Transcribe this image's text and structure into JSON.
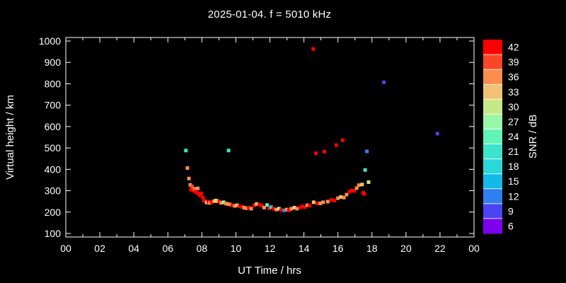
{
  "title": "2025-01-04. f = 5010 kHz",
  "colors": {
    "background": "#000000",
    "foreground": "#ffffff"
  },
  "chart_data": {
    "type": "scatter",
    "title": "2025-01-04. f = 5010 kHz",
    "xlabel": "UT Time / hrs",
    "ylabel": "Virtual height / km",
    "xlim": [
      0,
      24
    ],
    "ylim": [
      100,
      1000
    ],
    "grid": false,
    "x_tick_hours": [
      0,
      2,
      4,
      6,
      8,
      10,
      12,
      14,
      16,
      18,
      20,
      22,
      24
    ],
    "x_tick_labels": [
      "00",
      "02",
      "04",
      "06",
      "08",
      "10",
      "12",
      "14",
      "16",
      "18",
      "20",
      "22",
      "00"
    ],
    "y_ticks": [
      100,
      200,
      300,
      400,
      500,
      600,
      700,
      800,
      900,
      1000
    ],
    "colorbar": {
      "label": "SNR / dB",
      "ticks": [
        6,
        9,
        12,
        15,
        18,
        21,
        24,
        27,
        30,
        33,
        36,
        39,
        42
      ],
      "colors": [
        "#7C00F0",
        "#4A44F4",
        "#2E7FF2",
        "#13B9E9",
        "#2BD7DA",
        "#3BE4CB",
        "#62F3B6",
        "#9AF7A5",
        "#C7E886",
        "#F2C173",
        "#FB8D4D",
        "#FC4628",
        "#FF0000"
      ]
    },
    "point_desc": "each point = [UT hour, virtual height km, SNR dB]",
    "points": [
      [
        7.06,
        488,
        21
      ],
      [
        7.15,
        406,
        36
      ],
      [
        7.24,
        357,
        36
      ],
      [
        7.32,
        327,
        36
      ],
      [
        7.36,
        305,
        42
      ],
      [
        7.42,
        320,
        39
      ],
      [
        7.49,
        300,
        42
      ],
      [
        7.57,
        309,
        36
      ],
      [
        7.63,
        296,
        42
      ],
      [
        7.7,
        291,
        42
      ],
      [
        7.76,
        311,
        36
      ],
      [
        7.83,
        286,
        42
      ],
      [
        7.9,
        278,
        42
      ],
      [
        7.96,
        288,
        42
      ],
      [
        8.06,
        268,
        42
      ],
      [
        8.12,
        254,
        42
      ],
      [
        8.2,
        250,
        42
      ],
      [
        8.29,
        245,
        30
      ],
      [
        8.38,
        248,
        42
      ],
      [
        8.47,
        243,
        36
      ],
      [
        8.58,
        247,
        42
      ],
      [
        8.72,
        251,
        36
      ],
      [
        8.82,
        254,
        30
      ],
      [
        8.91,
        251,
        33
      ],
      [
        9.03,
        249,
        42
      ],
      [
        9.14,
        243,
        36
      ],
      [
        9.28,
        246,
        27
      ],
      [
        9.41,
        240,
        36
      ],
      [
        9.51,
        238,
        36
      ],
      [
        9.57,
        488,
        21
      ],
      [
        9.65,
        236,
        36
      ],
      [
        9.79,
        232,
        42
      ],
      [
        9.93,
        229,
        36
      ],
      [
        10.07,
        232,
        33
      ],
      [
        10.21,
        227,
        42
      ],
      [
        10.35,
        225,
        42
      ],
      [
        10.48,
        221,
        36
      ],
      [
        10.62,
        218,
        36
      ],
      [
        10.76,
        221,
        42
      ],
      [
        10.9,
        216,
        36
      ],
      [
        11.08,
        232,
        42
      ],
      [
        11.22,
        238,
        33
      ],
      [
        11.38,
        235,
        42
      ],
      [
        11.52,
        230,
        42
      ],
      [
        11.66,
        221,
        36
      ],
      [
        11.83,
        233,
        24
      ],
      [
        11.95,
        218,
        42
      ],
      [
        12.07,
        223,
        18
      ],
      [
        12.21,
        216,
        42
      ],
      [
        12.38,
        212,
        36
      ],
      [
        12.53,
        216,
        30
      ],
      [
        12.66,
        210,
        42
      ],
      [
        12.84,
        208,
        12
      ],
      [
        12.98,
        212,
        36
      ],
      [
        13.12,
        208,
        42
      ],
      [
        13.26,
        216,
        36
      ],
      [
        13.44,
        221,
        33
      ],
      [
        13.6,
        216,
        36
      ],
      [
        13.77,
        221,
        42
      ],
      [
        13.9,
        227,
        42
      ],
      [
        14.04,
        223,
        42
      ],
      [
        14.2,
        232,
        36
      ],
      [
        14.34,
        230,
        42
      ],
      [
        14.55,
        963,
        42
      ],
      [
        14.57,
        246,
        33
      ],
      [
        14.7,
        475,
        42
      ],
      [
        14.78,
        241,
        42
      ],
      [
        14.96,
        241,
        36
      ],
      [
        15.13,
        246,
        36
      ],
      [
        15.2,
        483,
        42
      ],
      [
        15.4,
        249,
        36
      ],
      [
        15.61,
        257,
        42
      ],
      [
        15.79,
        254,
        42
      ],
      [
        15.9,
        513,
        42
      ],
      [
        16.0,
        265,
        36
      ],
      [
        16.17,
        271,
        33
      ],
      [
        16.28,
        536,
        42
      ],
      [
        16.35,
        268,
        36
      ],
      [
        16.51,
        282,
        36
      ],
      [
        16.68,
        296,
        42
      ],
      [
        16.83,
        301,
        42
      ],
      [
        16.96,
        299,
        42
      ],
      [
        17.1,
        312,
        36
      ],
      [
        17.23,
        326,
        36
      ],
      [
        17.42,
        329,
        33
      ],
      [
        17.48,
        290,
        42
      ],
      [
        17.55,
        285,
        42
      ],
      [
        17.6,
        397,
        21
      ],
      [
        17.7,
        484,
        12
      ],
      [
        17.8,
        340,
        30
      ],
      [
        18.7,
        807,
        9
      ],
      [
        21.85,
        567,
        9
      ]
    ]
  }
}
